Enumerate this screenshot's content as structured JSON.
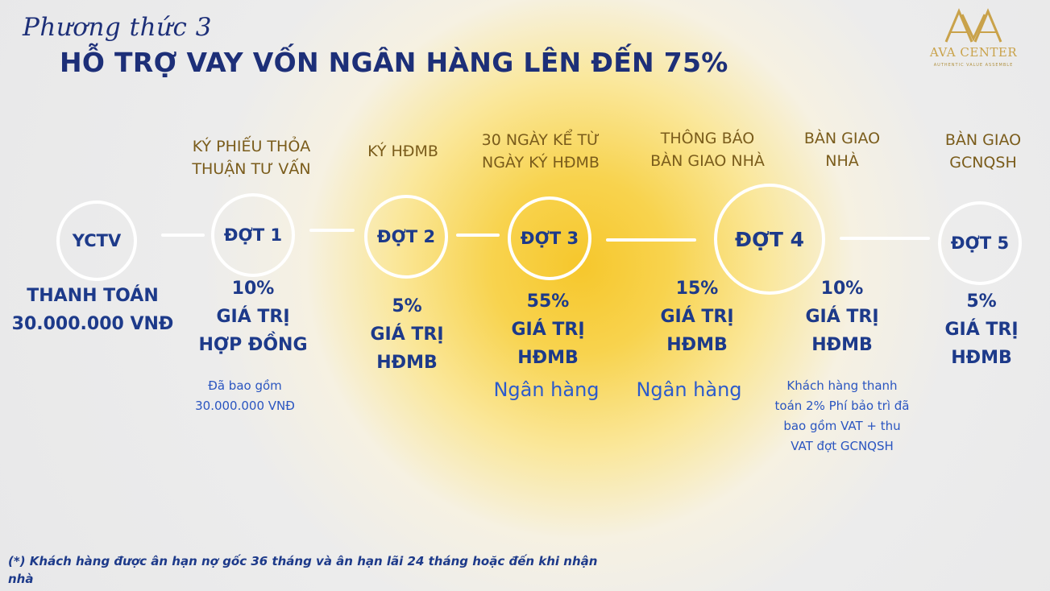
{
  "header": {
    "subtitle": "Phương thức 3",
    "title": "HỖ TRỢ VAY VỐN NGÂN HÀNG LÊN ĐẾN 75%"
  },
  "logo": {
    "name": "AVA CENTER",
    "tagline": "AUTHENTIC VALUE ASSEMBLE"
  },
  "steps": [
    {
      "circle": "YCTV",
      "top_label": [],
      "amount": [
        "THANH TOÁN",
        "30.000.000 VNĐ"
      ],
      "bank": "",
      "note": []
    },
    {
      "circle": "ĐỢT 1",
      "top_label": [
        "KÝ PHIẾU THỎA",
        "THUẬN TƯ VẤN"
      ],
      "amount": [
        "10%",
        "GIÁ TRỊ",
        "HỢP ĐỒNG"
      ],
      "bank": "",
      "note": [
        "Đã bao gồm",
        "30.000.000 VNĐ"
      ]
    },
    {
      "circle": "ĐỢT 2",
      "top_label": [
        "KÝ HĐMB"
      ],
      "amount": [
        "5%",
        "GIÁ TRỊ",
        "HĐMB"
      ],
      "bank": "",
      "note": []
    },
    {
      "circle": "ĐỢT 3",
      "top_label": [
        "30 NGÀY KỂ TỪ",
        "NGÀY KÝ HĐMB"
      ],
      "amount": [
        "55%",
        "GIÁ TRỊ",
        "HĐMB"
      ],
      "bank": "Ngân hàng",
      "note": []
    },
    {
      "circle": "ĐỢT 4",
      "top_label": [
        "THÔNG BÁO",
        "BÀN GIAO NHÀ"
      ],
      "amount": [
        "15%",
        "GIÁ TRỊ",
        "HĐMB"
      ],
      "bank": "Ngân hàng",
      "note": []
    },
    {
      "circle": "",
      "top_label": [
        "BÀN GIAO",
        "NHÀ"
      ],
      "amount": [
        "10%",
        "GIÁ TRỊ",
        "HĐMB"
      ],
      "bank": "",
      "note": [
        "Khách hàng thanh",
        "toán 2% Phí bảo trì đã",
        "bao gồm VAT + thu",
        "VAT đợt GCNQSH"
      ]
    },
    {
      "circle": "ĐỢT 5",
      "top_label": [
        "BÀN GIAO",
        "GCNQSH"
      ],
      "amount": [
        "5%",
        "GIÁ TRỊ",
        "HĐMB"
      ],
      "bank": "",
      "note": []
    }
  ],
  "footnote": "(*) Khách hàng được ân hạn nợ gốc 36 tháng và ân hạn lãi 24 tháng hoặc đến khi nhận nhà",
  "colors": {
    "primary": "#1d3a8a",
    "label_gold": "#7a5c1b",
    "bank_blue": "#2c5bcc",
    "highlight": "#f6c72c"
  }
}
